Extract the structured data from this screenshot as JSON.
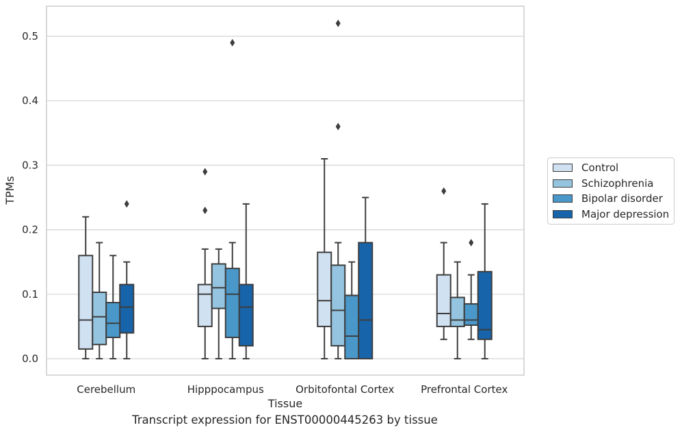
{
  "chart_data": {
    "type": "box",
    "title": "",
    "caption": "Transcript expression for ENST00000445263 by tissue",
    "xlabel": "Tissue",
    "ylabel": "TPMs",
    "ylim": [
      -0.025,
      0.545
    ],
    "yticks": [
      0.0,
      0.1,
      0.2,
      0.3,
      0.4,
      0.5
    ],
    "ytick_labels": [
      "0.0",
      "0.1",
      "0.2",
      "0.3",
      "0.4",
      "0.5"
    ],
    "grid": "horizontal",
    "legend_position": "right",
    "categories": [
      "Cerebellum",
      "Hipppocampus",
      "Orbitofontal Cortex",
      "Prefrontal Cortex"
    ],
    "series": [
      {
        "name": "Control",
        "color": "#d0e1f2",
        "boxes": [
          {
            "whislo": 0.0,
            "q1": 0.015,
            "med": 0.06,
            "q3": 0.16,
            "whishi": 0.22,
            "fliers": []
          },
          {
            "whislo": 0.0,
            "q1": 0.05,
            "med": 0.1,
            "q3": 0.115,
            "whishi": 0.17,
            "fliers": [
              0.23,
              0.29
            ]
          },
          {
            "whislo": 0.0,
            "q1": 0.05,
            "med": 0.09,
            "q3": 0.165,
            "whishi": 0.31,
            "fliers": []
          },
          {
            "whislo": 0.03,
            "q1": 0.05,
            "med": 0.07,
            "q3": 0.13,
            "whishi": 0.18,
            "fliers": [
              0.26
            ]
          }
        ]
      },
      {
        "name": "Schizophrenia",
        "color": "#94c4df",
        "boxes": [
          {
            "whislo": 0.0,
            "q1": 0.022,
            "med": 0.065,
            "q3": 0.103,
            "whishi": 0.18,
            "fliers": []
          },
          {
            "whislo": 0.0,
            "q1": 0.078,
            "med": 0.11,
            "q3": 0.147,
            "whishi": 0.17,
            "fliers": []
          },
          {
            "whislo": 0.0,
            "q1": 0.02,
            "med": 0.075,
            "q3": 0.145,
            "whishi": 0.18,
            "fliers": [
              0.36,
              0.52
            ]
          },
          {
            "whislo": 0.0,
            "q1": 0.05,
            "med": 0.06,
            "q3": 0.095,
            "whishi": 0.15,
            "fliers": []
          }
        ]
      },
      {
        "name": "Bipolar disorder",
        "color": "#4a98c9",
        "boxes": [
          {
            "whislo": 0.0,
            "q1": 0.033,
            "med": 0.055,
            "q3": 0.087,
            "whishi": 0.16,
            "fliers": []
          },
          {
            "whislo": 0.0,
            "q1": 0.033,
            "med": 0.1,
            "q3": 0.14,
            "whishi": 0.18,
            "fliers": [
              0.49
            ]
          },
          {
            "whislo": 0.0,
            "q1": 0.0,
            "med": 0.035,
            "q3": 0.098,
            "whishi": 0.15,
            "fliers": []
          },
          {
            "whislo": 0.03,
            "q1": 0.052,
            "med": 0.06,
            "q3": 0.085,
            "whishi": 0.13,
            "fliers": [
              0.18
            ]
          }
        ]
      },
      {
        "name": "Major depression",
        "color": "#1764ab",
        "boxes": [
          {
            "whislo": 0.0,
            "q1": 0.04,
            "med": 0.08,
            "q3": 0.115,
            "whishi": 0.15,
            "fliers": [
              0.24
            ]
          },
          {
            "whislo": 0.0,
            "q1": 0.02,
            "med": 0.08,
            "q3": 0.115,
            "whishi": 0.24,
            "fliers": []
          },
          {
            "whislo": 0.0,
            "q1": 0.0,
            "med": 0.06,
            "q3": 0.18,
            "whishi": 0.25,
            "fliers": []
          },
          {
            "whislo": 0.0,
            "q1": 0.03,
            "med": 0.045,
            "q3": 0.135,
            "whishi": 0.24,
            "fliers": []
          }
        ]
      }
    ]
  }
}
